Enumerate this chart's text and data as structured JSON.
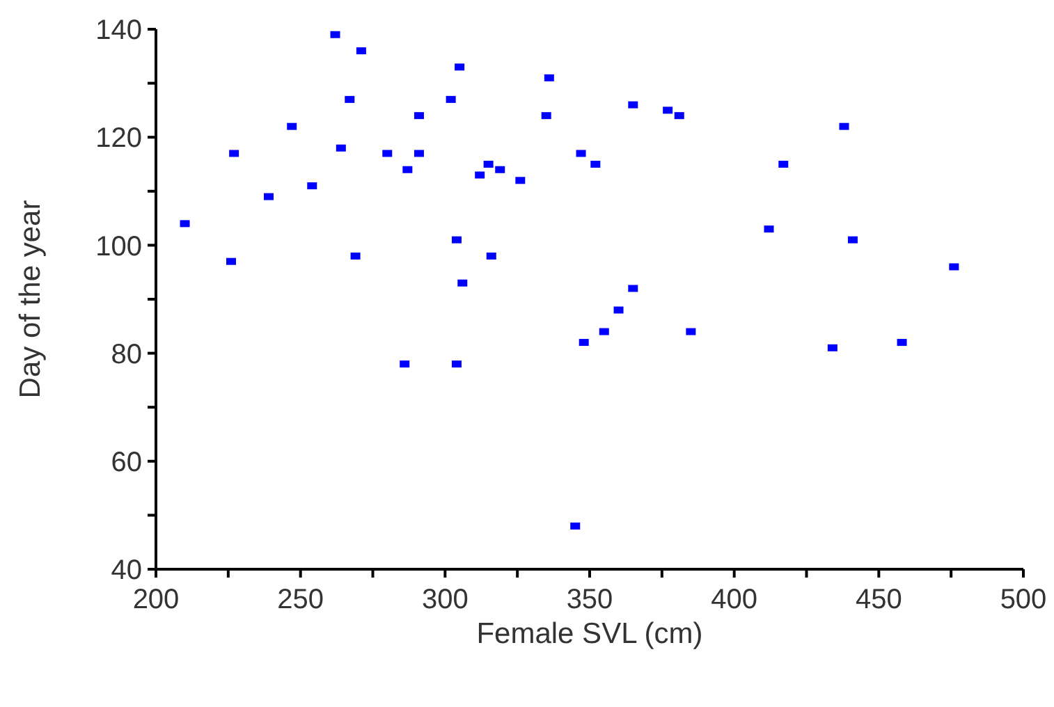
{
  "chart_data": {
    "type": "scatter",
    "xlabel": "Female SVL (cm)",
    "ylabel": "Day of the year",
    "marker": "square",
    "grid": false,
    "legend": false,
    "xlim": [
      200,
      500
    ],
    "ylim": [
      40,
      140
    ],
    "xticks": [
      200,
      {
        "value": 225,
        "label": null
      },
      250,
      {
        "value": 275,
        "label": null
      },
      300,
      {
        "value": 325,
        "label": null
      },
      350,
      {
        "value": 375,
        "label": null
      },
      400,
      {
        "value": 425,
        "label": null
      },
      450,
      {
        "value": 475,
        "label": null
      },
      500
    ],
    "yticks": [
      40,
      {
        "value": 50,
        "label": null
      },
      60,
      {
        "value": 70,
        "label": null
      },
      80,
      {
        "value": 90,
        "label": null
      },
      100,
      {
        "value": 110,
        "label": null
      },
      120,
      {
        "value": 130,
        "label": null
      },
      140
    ],
    "series": [
      {
        "color": "#0000ff",
        "x": [
          210,
          226,
          227,
          239,
          247,
          254,
          262,
          264,
          267,
          269,
          271,
          280,
          286,
          287,
          291,
          291,
          302,
          304,
          304,
          305,
          306,
          312,
          315,
          316,
          319,
          326,
          335,
          336,
          345,
          347,
          348,
          352,
          355,
          360,
          365,
          365,
          377,
          381,
          385,
          412,
          417,
          434,
          438,
          441,
          458,
          476
        ],
        "values": [
          104,
          97,
          117,
          109,
          122,
          111,
          139,
          118,
          127,
          98,
          136,
          117,
          78,
          114,
          124,
          117,
          127,
          101,
          78,
          133,
          93,
          113,
          115,
          98,
          114,
          112,
          124,
          131,
          48,
          117,
          82,
          115,
          84,
          88,
          126,
          92,
          125,
          124,
          84,
          103,
          115,
          81,
          122,
          101,
          82,
          96
        ]
      }
    ]
  }
}
